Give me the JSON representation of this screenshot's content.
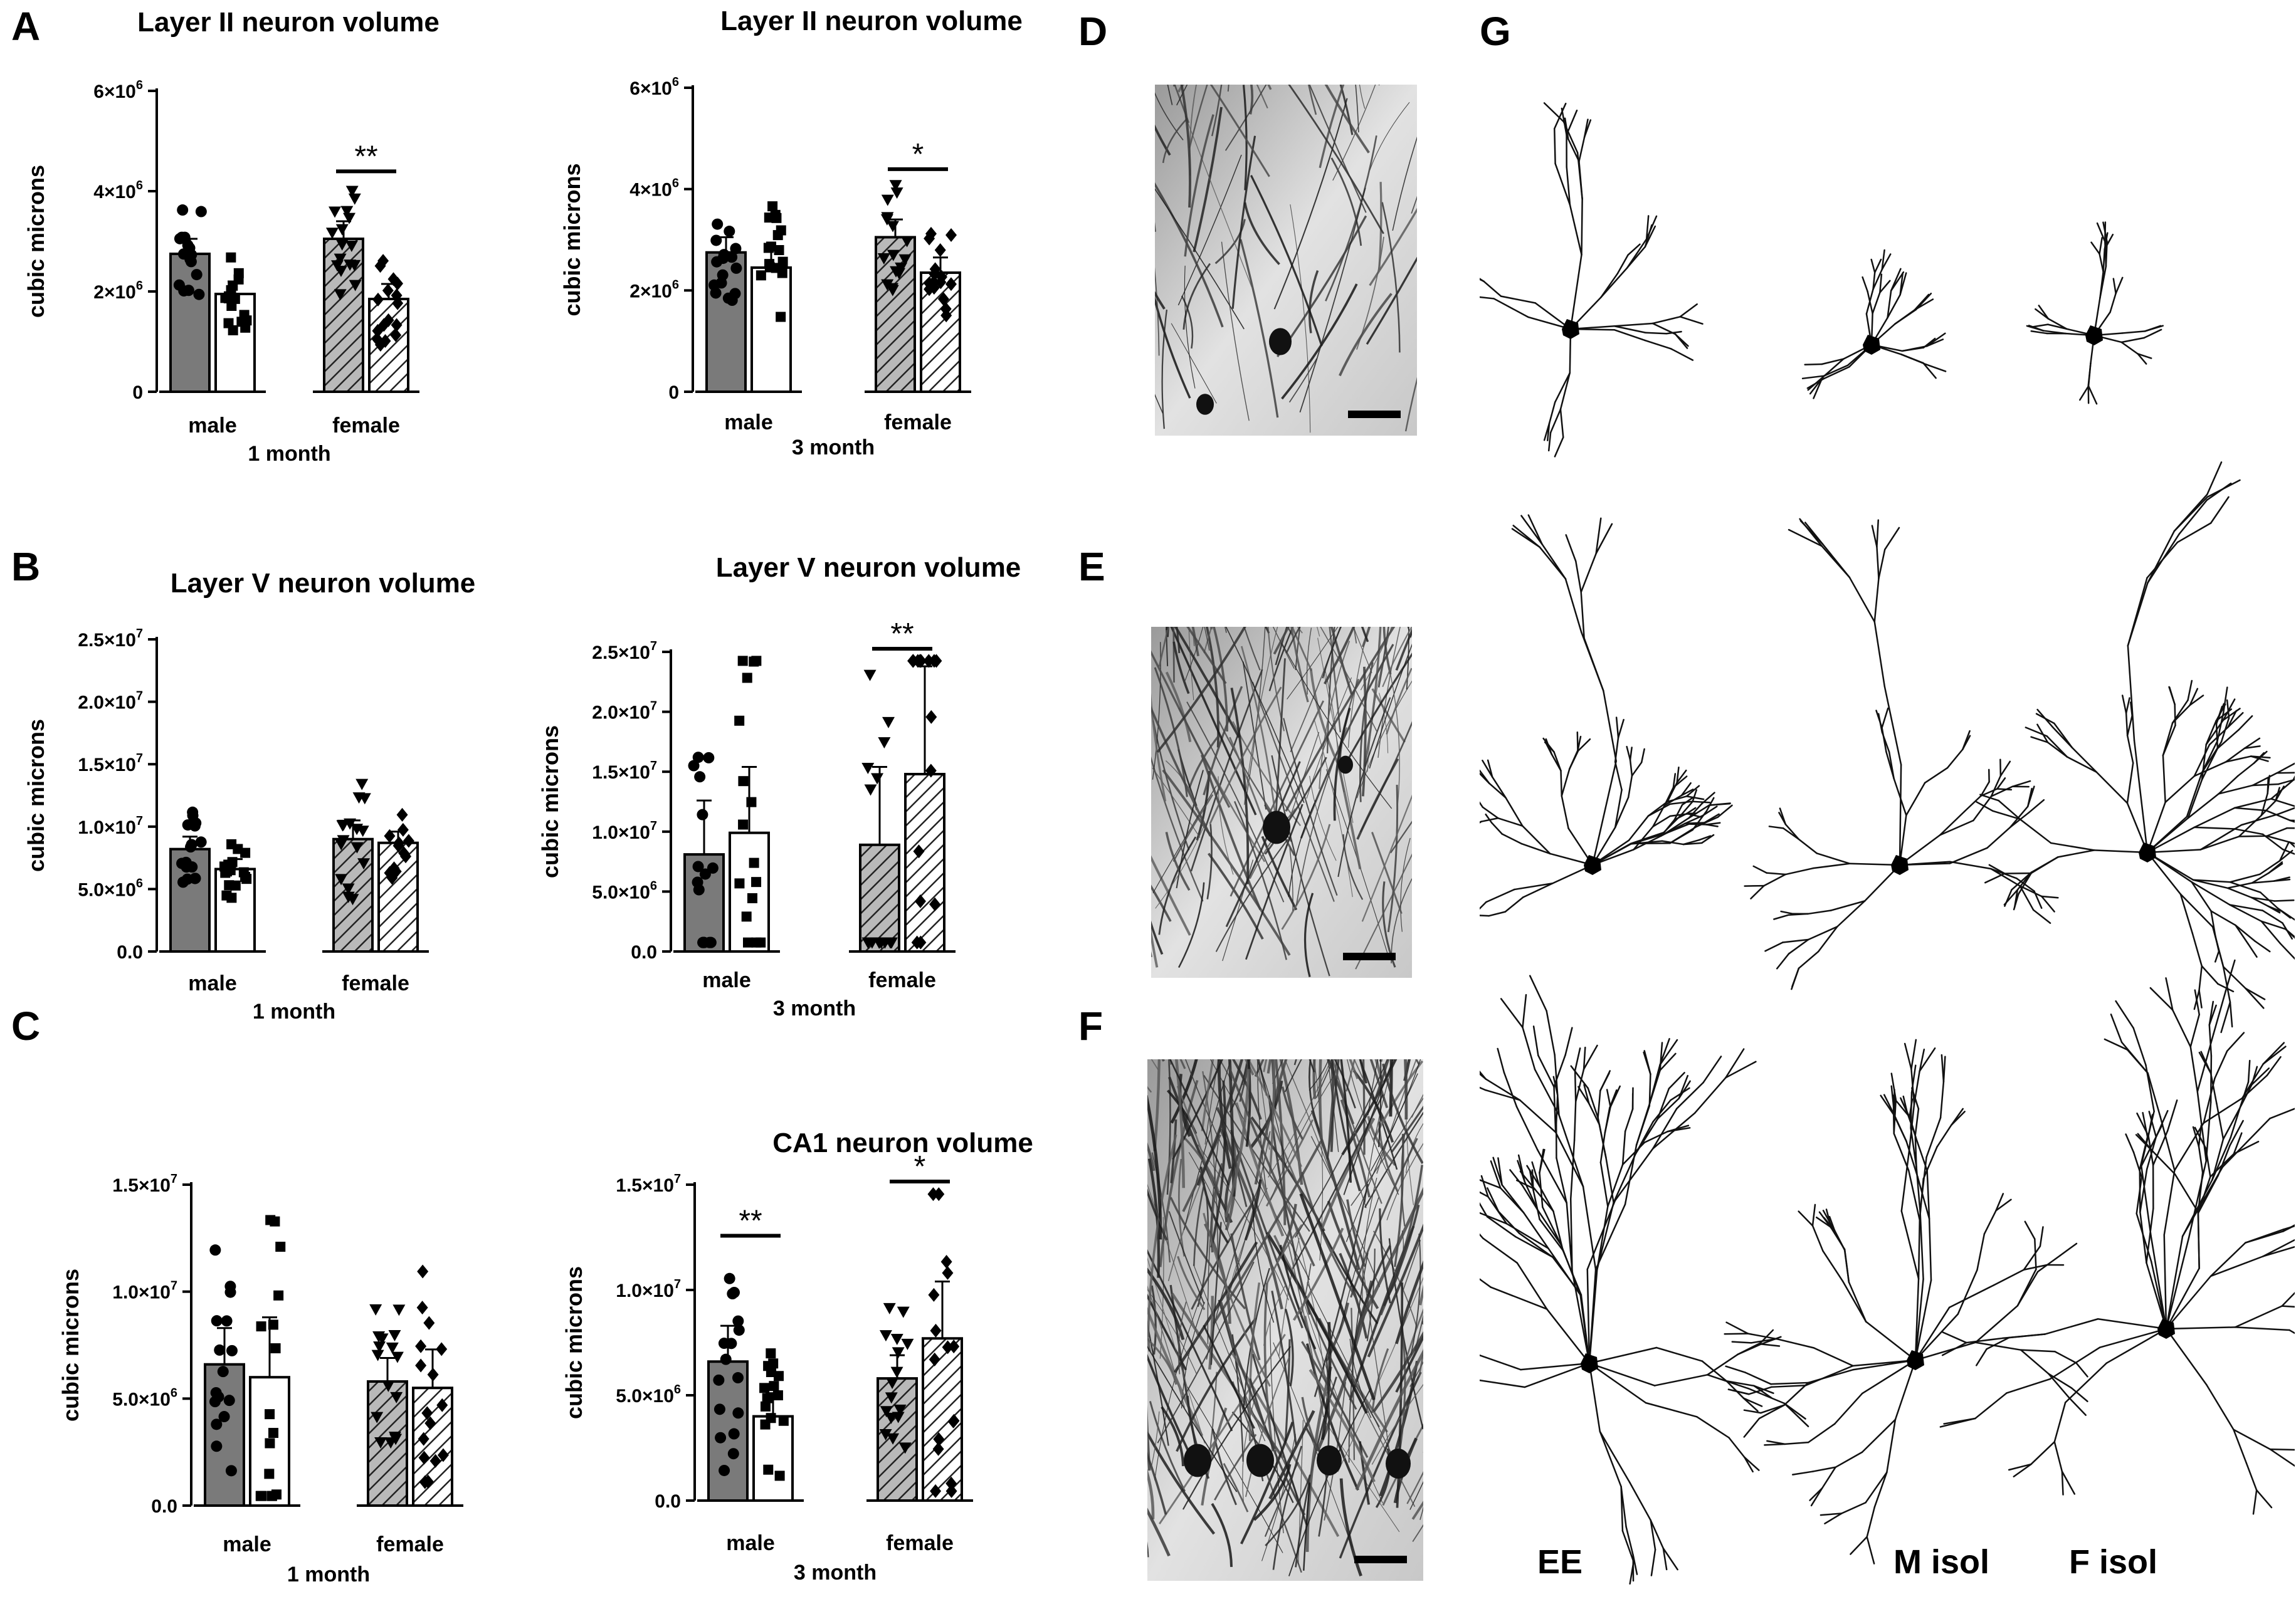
{
  "panels": {
    "A": "A",
    "B": "B",
    "C": "C",
    "D": "D",
    "E": "E",
    "F": "F",
    "G": "G"
  },
  "tracing_labels": {
    "ee": "EE",
    "m_isol": "M isol",
    "f_isol": "F isol"
  },
  "colors": {
    "male_ee_bar": "#7a7a7a",
    "male_isol_bar": "#ffffff",
    "female_ee_bar": "#b9b9b9",
    "female_isol_bar": "#ffffff",
    "ink": "#000000"
  },
  "icons": {
    "male_ee": "circle-marker",
    "male_isol": "square-marker",
    "female_ee": "triangle-down-marker",
    "female_isol": "diamond-marker",
    "scale_bar": "scale-bar",
    "neuron_tracing": "neuron-icon"
  },
  "chart_data": [
    {
      "id": "A1",
      "type": "bar",
      "title": "Layer II neuron volume",
      "ylabel": "cubic microns",
      "xlabel": "1 month",
      "groups": [
        "male",
        "female"
      ],
      "ylim": [
        0,
        6000000
      ],
      "yticks": [
        "0",
        "2×10^6",
        "4×10^6",
        "6×10^6"
      ],
      "bars": [
        {
          "group": "male",
          "condition": "EE",
          "mean": 2750000,
          "err": 300000
        },
        {
          "group": "male",
          "condition": "isol",
          "mean": 1950000,
          "err": 250000
        },
        {
          "group": "female",
          "condition": "EE",
          "mean": 3050000,
          "err": 350000
        },
        {
          "group": "female",
          "condition": "isol",
          "mean": 1850000,
          "err": 300000
        }
      ],
      "annotations": [
        {
          "group": "female",
          "text": "**"
        }
      ]
    },
    {
      "id": "A3",
      "type": "bar",
      "title": "Layer II neuron volume",
      "ylabel": "cubic microns",
      "xlabel": "3 month",
      "groups": [
        "male",
        "female"
      ],
      "ylim": [
        0,
        6000000
      ],
      "yticks": [
        "0",
        "2×10^6",
        "4×10^6",
        "6×10^6"
      ],
      "bars": [
        {
          "group": "male",
          "condition": "EE",
          "mean": 2750000,
          "err": 300000
        },
        {
          "group": "male",
          "condition": "isol",
          "mean": 2450000,
          "err": 400000
        },
        {
          "group": "female",
          "condition": "EE",
          "mean": 3050000,
          "err": 350000
        },
        {
          "group": "female",
          "condition": "isol",
          "mean": 2350000,
          "err": 300000
        }
      ],
      "annotations": [
        {
          "group": "female",
          "text": "*"
        }
      ]
    },
    {
      "id": "B1",
      "type": "bar",
      "title": "Layer V neuron volume",
      "ylabel": "cubic microns",
      "xlabel": "1 month",
      "groups": [
        "male",
        "female"
      ],
      "ylim": [
        0,
        25000000
      ],
      "yticks": [
        "0.0",
        "5.0×10^6",
        "1.0×10^7",
        "1.5×10^7",
        "2.0×10^7",
        "2.5×10^7"
      ],
      "bars": [
        {
          "group": "male",
          "condition": "EE",
          "mean": 8200000,
          "err": 1000000
        },
        {
          "group": "male",
          "condition": "isol",
          "mean": 6600000,
          "err": 800000
        },
        {
          "group": "female",
          "condition": "EE",
          "mean": 9000000,
          "err": 1500000
        },
        {
          "group": "female",
          "condition": "isol",
          "mean": 8700000,
          "err": 900000
        }
      ],
      "annotations": []
    },
    {
      "id": "B3",
      "type": "bar",
      "title": "Layer V neuron volume",
      "ylabel": "cubic microns",
      "xlabel": "3 month",
      "groups": [
        "male",
        "female"
      ],
      "ylim": [
        0,
        25000000
      ],
      "yticks": [
        "0.0",
        "5.0×10^6",
        "1.0×10^7",
        "1.5×10^7",
        "2.0×10^7",
        "2.5×10^7"
      ],
      "bars": [
        {
          "group": "male",
          "condition": "EE",
          "mean": 8100000,
          "err": 4500000
        },
        {
          "group": "male",
          "condition": "isol",
          "mean": 9900000,
          "err": 5500000
        },
        {
          "group": "female",
          "condition": "EE",
          "mean": 8900000,
          "err": 6500000
        },
        {
          "group": "female",
          "condition": "isol",
          "mean": 14800000,
          "err": 9000000
        }
      ],
      "annotations": [
        {
          "group": "female",
          "text": "**"
        }
      ]
    },
    {
      "id": "C1",
      "type": "bar",
      "title": "",
      "ylabel": "cubic microns",
      "xlabel": "1 month",
      "groups": [
        "male",
        "female"
      ],
      "ylim": [
        0,
        15000000
      ],
      "yticks": [
        "0.0",
        "5.0×10^6",
        "1.0×10^7",
        "1.5×10^7"
      ],
      "bars": [
        {
          "group": "male",
          "condition": "EE",
          "mean": 6600000,
          "err": 1700000
        },
        {
          "group": "male",
          "condition": "isol",
          "mean": 6000000,
          "err": 2800000
        },
        {
          "group": "female",
          "condition": "EE",
          "mean": 5800000,
          "err": 1100000
        },
        {
          "group": "female",
          "condition": "isol",
          "mean": 5500000,
          "err": 1800000
        }
      ],
      "annotations": []
    },
    {
      "id": "C3",
      "type": "bar",
      "title": "CA1 neuron volume",
      "ylabel": "cubic microns",
      "xlabel": "3 month",
      "groups": [
        "male",
        "female"
      ],
      "ylim": [
        0,
        15000000
      ],
      "yticks": [
        "0.0",
        "5.0×10^6",
        "1.0×10^7",
        "1.5×10^7"
      ],
      "bars": [
        {
          "group": "male",
          "condition": "EE",
          "mean": 6600000,
          "err": 1700000
        },
        {
          "group": "male",
          "condition": "isol",
          "mean": 4000000,
          "err": 1100000
        },
        {
          "group": "female",
          "condition": "EE",
          "mean": 5800000,
          "err": 1100000
        },
        {
          "group": "female",
          "condition": "isol",
          "mean": 7700000,
          "err": 2700000
        }
      ],
      "annotations": [
        {
          "group": "male",
          "text": "**"
        },
        {
          "group": "female",
          "text": "*"
        }
      ]
    }
  ]
}
